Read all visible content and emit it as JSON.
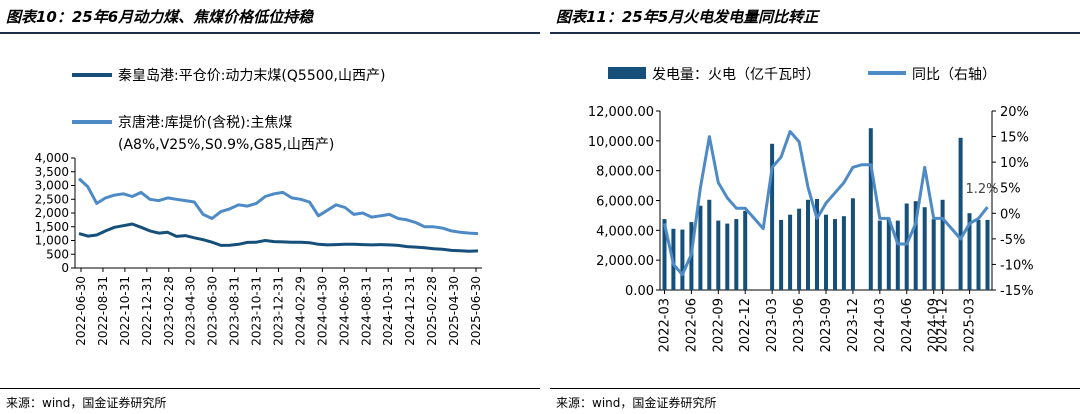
{
  "colors": {
    "dark_series": "#16507a",
    "light_series": "#4d8ac6",
    "bar": "#16507a",
    "axis": "#000000"
  },
  "left": {
    "title": "图表10：25年6月动力煤、焦煤价格低位持稳",
    "source": "来源：wind，国金证券研究所",
    "legend": {
      "series1": "秦皇岛港:平仓价:动力末煤(Q5500,山西产)",
      "series2_line1": "京唐港:库提价(含税):主焦煤",
      "series2_line2": "(A8%,V25%,S0.9%,G85,山西产)"
    }
  },
  "right": {
    "title": "图表11：25年5月火电发电量同比转正",
    "source": "来源：wind，国金证券研究所",
    "legend": {
      "bar": "发电量：火电（亿千瓦时）",
      "line": "同比（右轴）"
    },
    "annotation": "1.2%"
  },
  "chart_data": [
    {
      "type": "line",
      "x_ticks": [
        "2022-06-30",
        "2022-08-31",
        "2022-10-31",
        "2022-12-31",
        "2023-02-28",
        "2023-04-30",
        "2023-06-30",
        "2023-08-31",
        "2023-10-31",
        "2023-12-31",
        "2024-02-29",
        "2024-04-30",
        "2024-06-30",
        "2024-08-31",
        "2024-10-31",
        "2024-12-31",
        "2025-02-28",
        "2025-04-30",
        "2025-06-30"
      ],
      "ylim": [
        0,
        4000
      ],
      "y_ticks": [
        "0",
        "500",
        "1,000",
        "1,500",
        "2,000",
        "2,500",
        "3,000",
        "3,500",
        "4,000"
      ],
      "series": [
        {
          "name": "秦皇岛港:平仓价:动力末煤(Q5500,山西产)",
          "values": [
            1250,
            1160,
            1200,
            1350,
            1480,
            1540,
            1600,
            1480,
            1350,
            1270,
            1300,
            1150,
            1180,
            1100,
            1030,
            940,
            820,
            830,
            860,
            930,
            940,
            1000,
            960,
            950,
            940,
            940,
            920,
            860,
            840,
            850,
            860,
            860,
            850,
            840,
            850,
            840,
            820,
            780,
            760,
            740,
            700,
            680,
            640,
            630,
            610,
            620
          ]
        },
        {
          "name": "京唐港:库提价(含税):主焦煤(A8%,V25%,S0.9%,G85,山西产)",
          "values": [
            3250,
            2950,
            2350,
            2550,
            2650,
            2700,
            2600,
            2750,
            2500,
            2450,
            2550,
            2500,
            2450,
            2400,
            1950,
            1800,
            2050,
            2150,
            2300,
            2250,
            2350,
            2600,
            2700,
            2750,
            2550,
            2500,
            2400,
            1900,
            2100,
            2300,
            2200,
            1950,
            2000,
            1850,
            1900,
            1950,
            1800,
            1750,
            1650,
            1500,
            1500,
            1450,
            1350,
            1300,
            1270,
            1250
          ]
        }
      ]
    },
    {
      "type": "bar+line",
      "x_ticks": [
        "2022-03",
        "2022-06",
        "2022-09",
        "2022-12",
        "2023-03",
        "2023-06",
        "2023-09",
        "2023-12",
        "2024-03",
        "2024-06",
        "2024-09",
        "2024-12",
        "2025-03"
      ],
      "y_left": {
        "ylim": [
          0,
          12000
        ],
        "ticks": [
          "0.00",
          "2,000.00",
          "4,000.00",
          "6,000.00",
          "8,000.00",
          "10,000.00",
          "12,000.00"
        ]
      },
      "y_right": {
        "ylim": [
          -15,
          20
        ],
        "ticks": [
          "-15%",
          "-10%",
          "-5%",
          "0%",
          "5%",
          "10%",
          "15%",
          "20%"
        ]
      },
      "categories": [
        "2022-03",
        "2022-04",
        "2022-05",
        "2022-06",
        "2022-07",
        "2022-08",
        "2022-09",
        "2022-10",
        "2022-11",
        "2022-12",
        "2023-01",
        "2023-02",
        "2023-03",
        "2023-04",
        "2023-05",
        "2023-06",
        "2023-07",
        "2023-08",
        "2023-09",
        "2023-10",
        "2023-11",
        "2023-12",
        "2024-01",
        "2024-02",
        "2024-03",
        "2024-04",
        "2024-05",
        "2024-06",
        "2024-07",
        "2024-08",
        "2024-09",
        "2024-12",
        "2025-01",
        "2025-02",
        "2025-03",
        "2025-04",
        "2025-05"
      ],
      "series": [
        {
          "name": "发电量：火电（亿千瓦时）",
          "kind": "bar",
          "values": [
            4750,
            4100,
            4050,
            4550,
            5650,
            6050,
            4650,
            4450,
            4750,
            5300,
            null,
            null,
            9800,
            4700,
            5050,
            5450,
            6050,
            6100,
            5050,
            4750,
            4950,
            6150,
            null,
            10850,
            4650,
            4800,
            4650,
            5800,
            5950,
            5550,
            4750,
            6050,
            null,
            10200,
            5150,
            4700,
            4700
          ]
        },
        {
          "name": "同比（右轴）",
          "kind": "line",
          "values": [
            -2,
            -10,
            -12,
            -8,
            5,
            15,
            6,
            3,
            1,
            1,
            -1,
            -3,
            9,
            11,
            16,
            14,
            5,
            -1,
            2,
            4,
            6,
            9,
            9.5,
            9.5,
            -1,
            -1,
            -6,
            -6,
            -2,
            9,
            -1,
            -1,
            -3,
            -5,
            -2,
            -1,
            1.2
          ]
        }
      ]
    }
  ]
}
